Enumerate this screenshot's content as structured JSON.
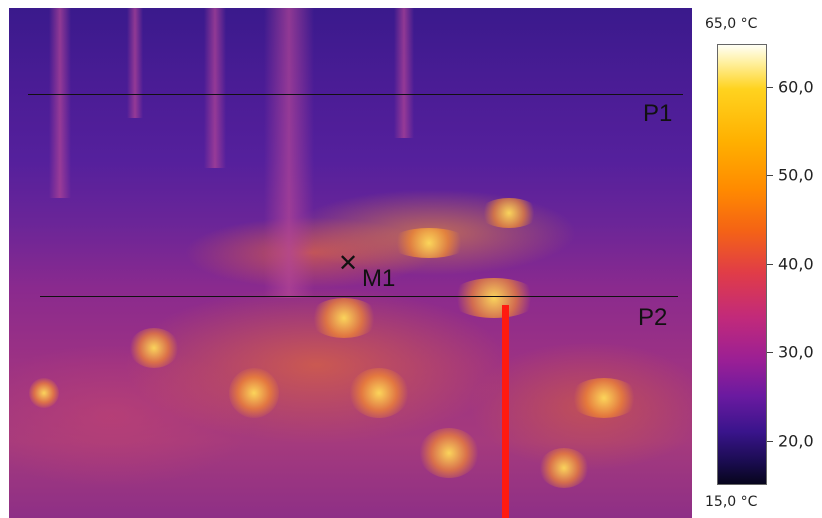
{
  "image": {
    "profiles": [
      {
        "label": "P1"
      },
      {
        "label": "P2"
      }
    ],
    "marker": {
      "symbol": "✕",
      "label": "M1"
    }
  },
  "scale": {
    "max_label": "65,0 °C",
    "min_label": "15,0 °C",
    "ticks": [
      "60,0",
      "50,0",
      "40,0",
      "30,0",
      "20,0"
    ],
    "palette": "iron",
    "max_value": 65.0,
    "min_value": 15.0,
    "tick_values": [
      60,
      50,
      40,
      30,
      20
    ]
  }
}
